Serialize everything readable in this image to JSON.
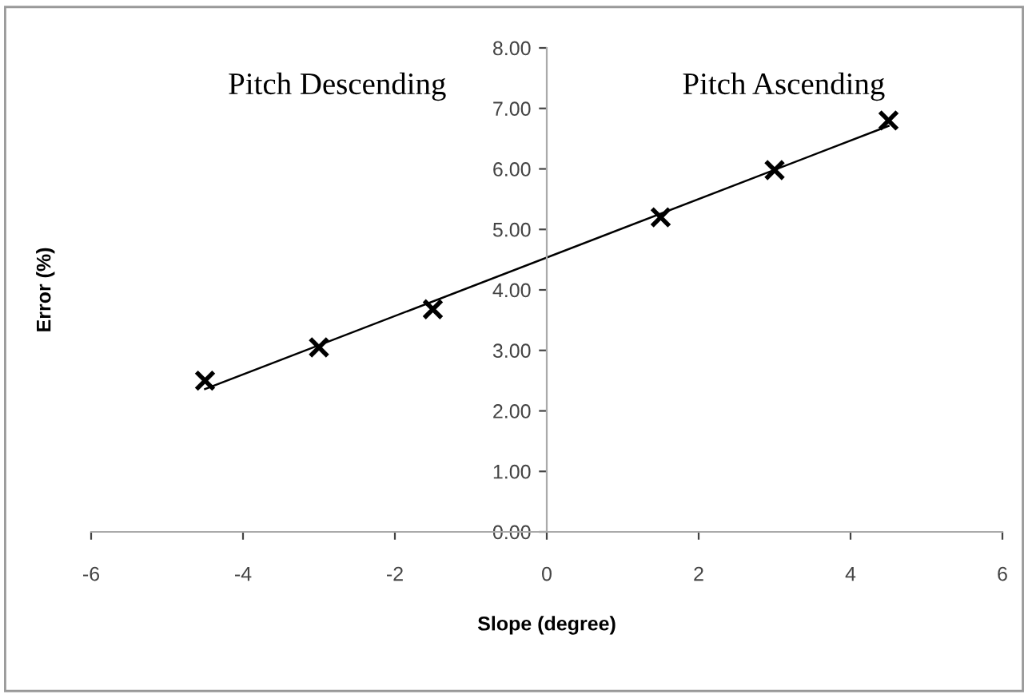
{
  "chart_data": {
    "type": "scatter",
    "xlabel": "Slope (degree)",
    "ylabel": "Error (%)",
    "annotations": [
      "Pitch Descending",
      "Pitch Ascending"
    ],
    "series": [
      {
        "color": "#000000",
        "marker": "cross",
        "x": [
          -4.5,
          -3,
          -1.5,
          1.5,
          3,
          4.5
        ],
        "values": [
          2.5,
          3.05,
          3.68,
          5.2,
          5.98,
          6.8
        ]
      },
      {
        "type": "line",
        "color": "#000000",
        "x": [
          -4.5,
          4.5
        ],
        "values": [
          2.36,
          6.71
        ]
      }
    ],
    "xlim": [
      -6,
      6
    ],
    "xticks": [
      {
        "value": -6,
        "label": "-6"
      },
      {
        "value": -4,
        "label": "-4"
      },
      {
        "value": -2,
        "label": "-2"
      },
      0,
      2,
      4,
      6
    ],
    "ylim": [
      0,
      8
    ],
    "yticks": [
      {
        "value": 0,
        "label": "0.00"
      },
      {
        "value": 1,
        "label": "1.00"
      },
      {
        "value": 2,
        "label": "2.00"
      },
      {
        "value": 3,
        "label": "3.00"
      },
      {
        "value": 4,
        "label": "4.00"
      },
      {
        "value": 5,
        "label": "5.00"
      },
      {
        "value": 6,
        "label": "6.00"
      },
      {
        "value": 7,
        "label": "7.00"
      },
      {
        "value": 8,
        "label": "8.00"
      }
    ],
    "grid": false,
    "legend": false
  }
}
